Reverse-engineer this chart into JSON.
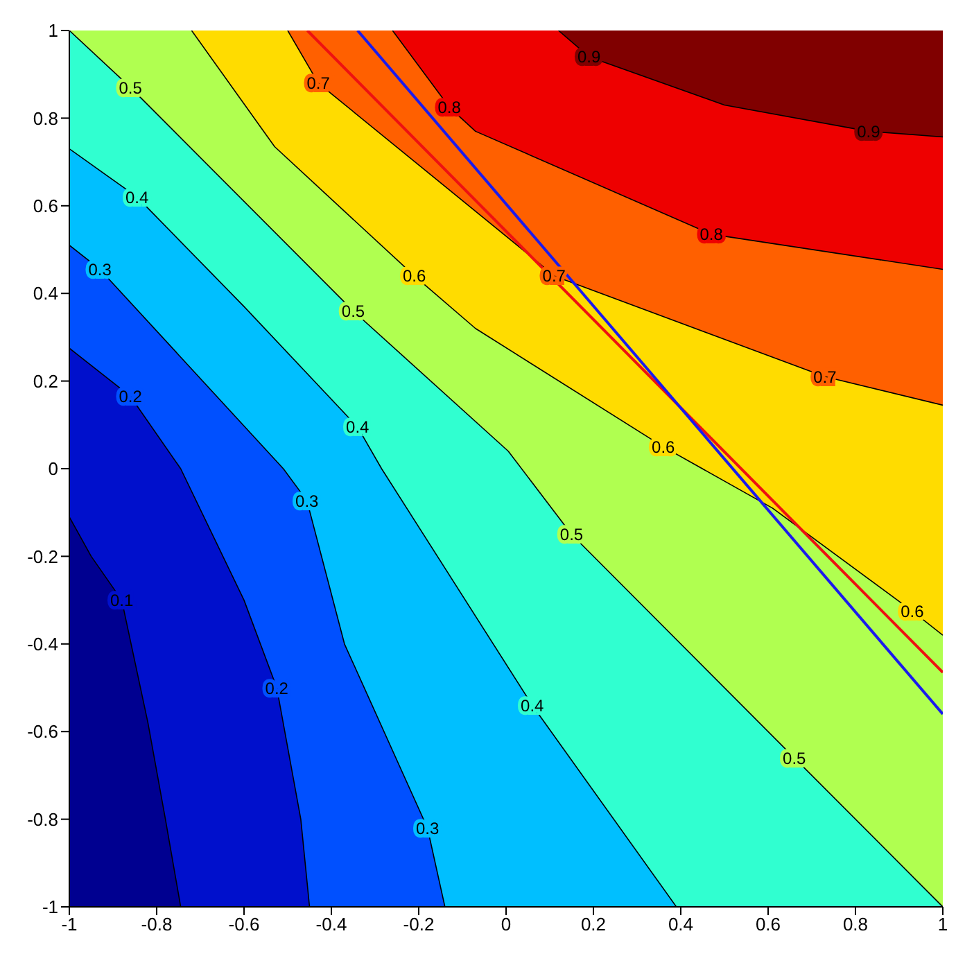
{
  "chart_data": {
    "type": "line",
    "xlim": [
      -1,
      1
    ],
    "ylim": [
      -1,
      1
    ],
    "xticks": [
      -1,
      -0.8,
      -0.6,
      -0.4,
      -0.2,
      0,
      0.2,
      0.4,
      0.6,
      0.8,
      1
    ],
    "yticks": [
      -1,
      -0.8,
      -0.6,
      -0.4,
      -0.2,
      0,
      0.2,
      0.4,
      0.6,
      0.8,
      1
    ],
    "colors": [
      "#000090",
      "#0010cc",
      "#0050ff",
      "#00bfff",
      "#30ffd0",
      "#b0ff50",
      "#ffdc00",
      "#ff6000",
      "#ee0000",
      "#800000"
    ],
    "series": [
      {
        "color": "#000000",
        "x": [
          -1,
          -0.95,
          -0.88,
          -0.82,
          -0.78,
          -0.745
        ],
        "values": [
          -0.11,
          -0.2,
          -0.3,
          -0.58,
          -0.8,
          -1
        ]
      },
      {
        "color": "#000000",
        "x": [
          -1,
          -0.86,
          -0.745,
          -0.6,
          -0.525,
          -0.47,
          -0.45
        ],
        "values": [
          0.275,
          0.165,
          0,
          -0.3,
          -0.5,
          -0.8,
          -1
        ]
      },
      {
        "color": "#000000",
        "x": [
          -1,
          -0.93,
          -0.75,
          -0.51,
          -0.456,
          -0.37,
          -0.18,
          -0.14
        ],
        "values": [
          0.51,
          0.455,
          0.26,
          0,
          -0.073,
          -0.4,
          -0.82,
          -1
        ]
      },
      {
        "color": "#000000",
        "x": [
          -1,
          -0.845,
          -0.6,
          -0.34,
          -0.285,
          0.06,
          0.39
        ],
        "values": [
          0.73,
          0.62,
          0.37,
          0.095,
          0,
          -0.54,
          -1
        ]
      },
      {
        "color": "#000000",
        "x": [
          -1,
          -0.86,
          -0.35,
          0.005,
          0.15,
          0.66,
          1
        ],
        "values": [
          1,
          0.87,
          0.36,
          0.04,
          -0.15,
          -0.66,
          -1
        ]
      },
      {
        "color": "#000000",
        "x": [
          -0.72,
          -0.53,
          -0.21,
          -0.07,
          0.36,
          0.61,
          0.93,
          1
        ],
        "values": [
          1,
          0.735,
          0.44,
          0.32,
          0.05,
          -0.09,
          -0.325,
          -0.38
        ]
      },
      {
        "color": "#000000",
        "x": [
          -0.5,
          -0.43,
          0.05,
          0.11,
          0.73,
          1
        ],
        "values": [
          1,
          0.88,
          0.49,
          0.44,
          0.21,
          0.145
        ]
      },
      {
        "color": "#000000",
        "x": [
          -0.26,
          -0.13,
          -0.07,
          0.47,
          1
        ],
        "values": [
          1,
          0.825,
          0.77,
          0.535,
          0.455
        ]
      },
      {
        "color": "#000000",
        "x": [
          0.12,
          0.19,
          0.5,
          0.83,
          1
        ],
        "values": [
          1,
          0.94,
          0.83,
          0.77,
          0.757
        ]
      },
      {
        "color": "#ee1111",
        "x": [
          -0.455,
          1
        ],
        "values": [
          1,
          -0.465
        ]
      },
      {
        "color": "#1a1aee",
        "x": [
          -0.34,
          1
        ],
        "values": [
          1,
          -0.56
        ]
      }
    ],
    "annotations": [
      {
        "text": "0.1",
        "x": -0.88,
        "y": -0.3
      },
      {
        "text": "0.2",
        "x": -0.86,
        "y": 0.165
      },
      {
        "text": "0.2",
        "x": -0.525,
        "y": -0.5
      },
      {
        "text": "0.3",
        "x": -0.93,
        "y": 0.455
      },
      {
        "text": "0.3",
        "x": -0.456,
        "y": -0.073
      },
      {
        "text": "0.3",
        "x": -0.18,
        "y": -0.82
      },
      {
        "text": "0.4",
        "x": -0.845,
        "y": 0.62
      },
      {
        "text": "0.4",
        "x": -0.34,
        "y": 0.095
      },
      {
        "text": "0.4",
        "x": 0.06,
        "y": -0.54
      },
      {
        "text": "0.5",
        "x": -0.86,
        "y": 0.87
      },
      {
        "text": "0.5",
        "x": -0.35,
        "y": 0.36
      },
      {
        "text": "0.5",
        "x": 0.15,
        "y": -0.15
      },
      {
        "text": "0.5",
        "x": 0.66,
        "y": -0.66
      },
      {
        "text": "0.6",
        "x": -0.21,
        "y": 0.44
      },
      {
        "text": "0.6",
        "x": 0.36,
        "y": 0.05
      },
      {
        "text": "0.6",
        "x": 0.93,
        "y": -0.325
      },
      {
        "text": "0.7",
        "x": -0.43,
        "y": 0.88
      },
      {
        "text": "0.7",
        "x": 0.11,
        "y": 0.44
      },
      {
        "text": "0.7",
        "x": 0.73,
        "y": 0.21
      },
      {
        "text": "0.8",
        "x": -0.13,
        "y": 0.825
      },
      {
        "text": "0.8",
        "x": 0.47,
        "y": 0.535
      },
      {
        "text": "0.9",
        "x": 0.19,
        "y": 0.94
      },
      {
        "text": "0.9",
        "x": 0.83,
        "y": 0.77
      }
    ]
  }
}
